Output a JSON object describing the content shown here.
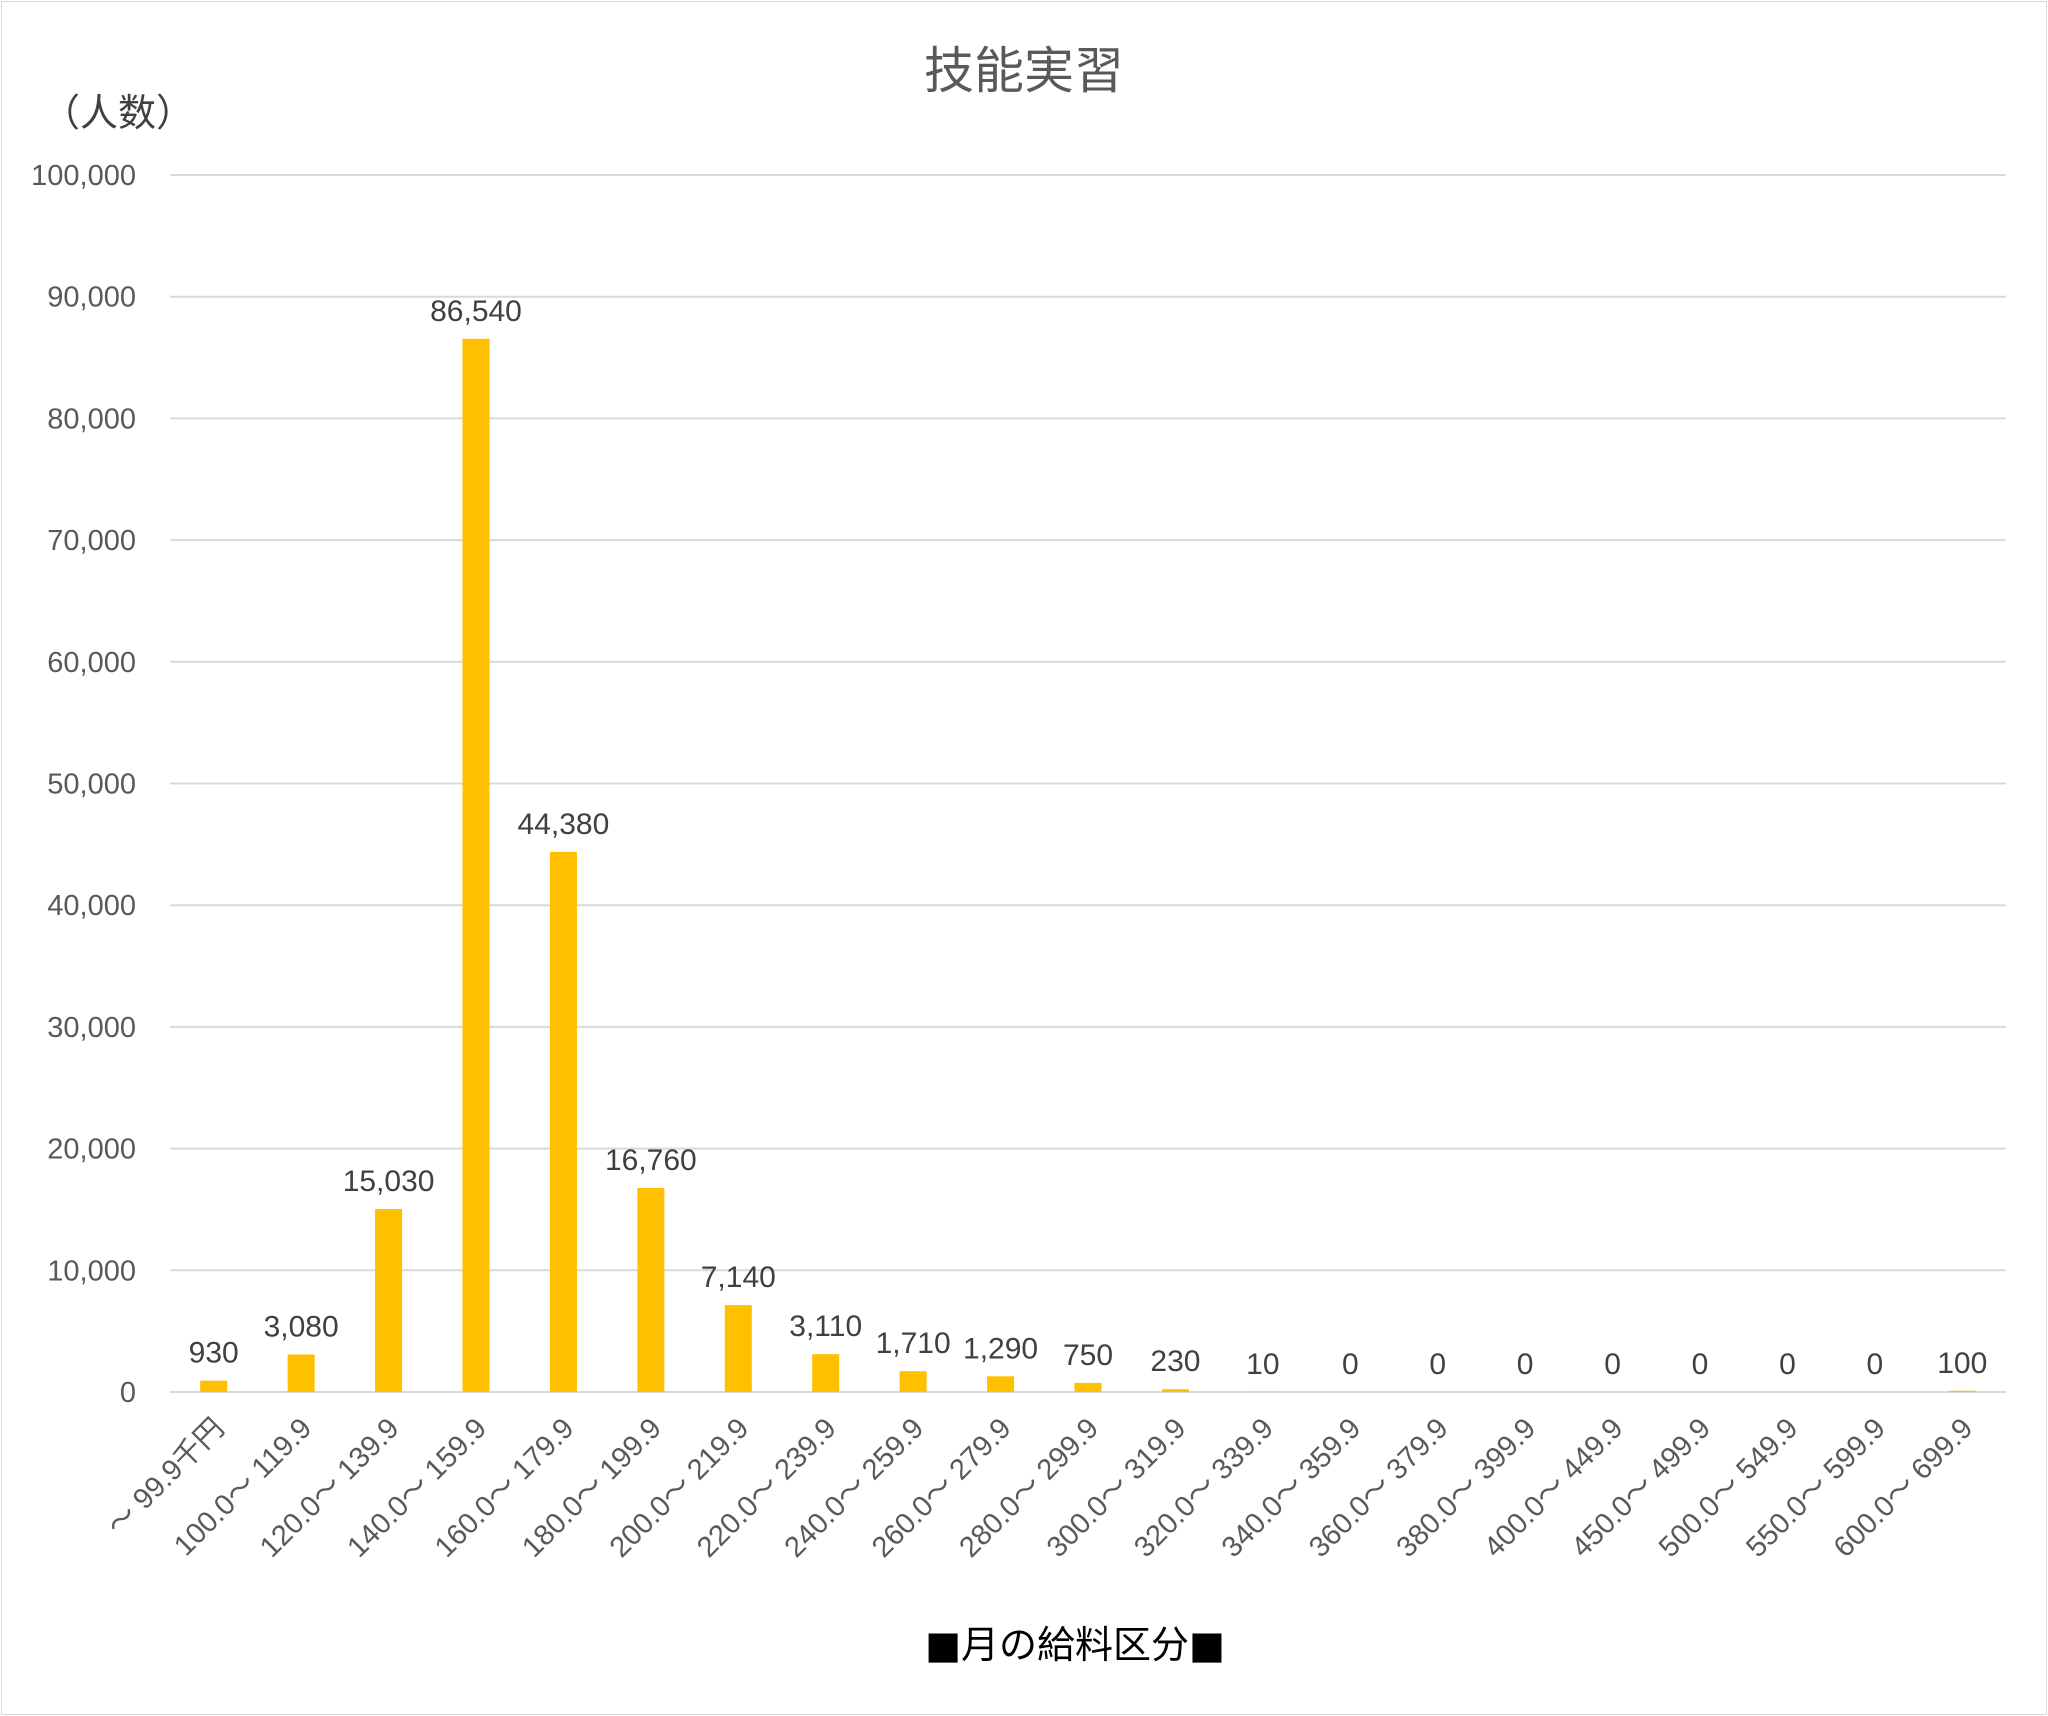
{
  "chart_data": {
    "type": "bar",
    "title": "技能実習",
    "ylabel": "（人数）",
    "xlabel": "■月の給料区分■",
    "ylim": [
      0,
      100000
    ],
    "yticks": [
      "0",
      "10,000",
      "20,000",
      "30,000",
      "40,000",
      "50,000",
      "60,000",
      "70,000",
      "80,000",
      "90,000",
      "100,000"
    ],
    "ytick_values": [
      0,
      10000,
      20000,
      30000,
      40000,
      50000,
      60000,
      70000,
      80000,
      90000,
      100000
    ],
    "categories": [
      "～ 99.9千円",
      "100.0～ 119.9",
      "120.0～ 139.9",
      "140.0～ 159.9",
      "160.0～ 179.9",
      "180.0～ 199.9",
      "200.0～ 219.9",
      "220.0～ 239.9",
      "240.0～ 259.9",
      "260.0～ 279.9",
      "280.0～ 299.9",
      "300.0～ 319.9",
      "320.0～ 339.9",
      "340.0～ 359.9",
      "360.0～ 379.9",
      "380.0～ 399.9",
      "400.0～ 449.9",
      "450.0～ 499.9",
      "500.0～ 549.9",
      "550.0～ 599.9",
      "600.0～ 699.9"
    ],
    "values": [
      930,
      3080,
      15030,
      86540,
      44380,
      16760,
      7140,
      3110,
      1710,
      1290,
      750,
      230,
      10,
      0,
      0,
      0,
      0,
      0,
      0,
      0,
      100
    ],
    "value_labels": [
      "930",
      "3,080",
      "15,030",
      "86,540",
      "44,380",
      "16,760",
      "7,140",
      "3,110",
      "1,710",
      "1,290",
      "750",
      "230",
      "10",
      "0",
      "0",
      "0",
      "0",
      "0",
      "0",
      "0",
      "100"
    ],
    "grid": true,
    "legend": "none",
    "colors": {
      "bar": "#FFC000",
      "grid": "#d9d9d9"
    }
  }
}
